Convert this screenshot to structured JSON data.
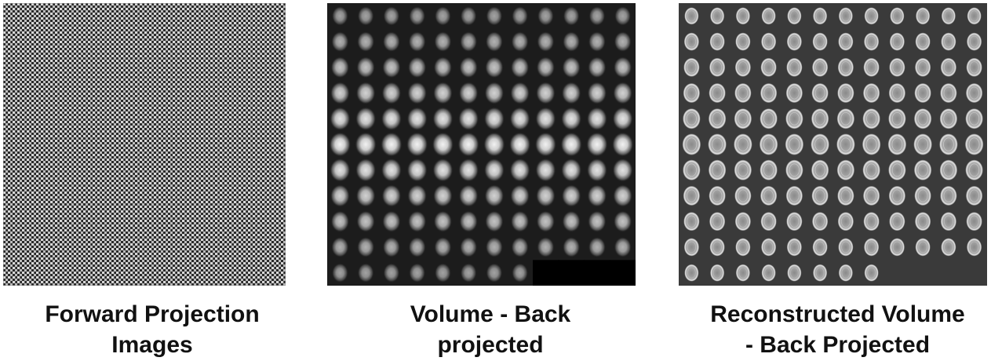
{
  "panels": [
    {
      "id": "forward-projection",
      "caption_lines": [
        "Forward Projection",
        "Images"
      ]
    },
    {
      "id": "volume-back-projected",
      "caption_lines": [
        "Volume - Back",
        "projected"
      ],
      "grid_columns": 12,
      "grid_rows": 11,
      "tile_count": 128
    },
    {
      "id": "reconstructed-volume",
      "caption_lines": [
        "Reconstructed Volume",
        "- Back Projected"
      ],
      "grid_columns": 12,
      "grid_rows": 11,
      "tile_count": 128
    }
  ],
  "colors": {
    "background": "#ffffff",
    "noise_dark": "#1a1a1a",
    "volume_bg": "#1c1c1c",
    "recon_bg": "#3a3a3a",
    "empty_tile": "#000000"
  }
}
